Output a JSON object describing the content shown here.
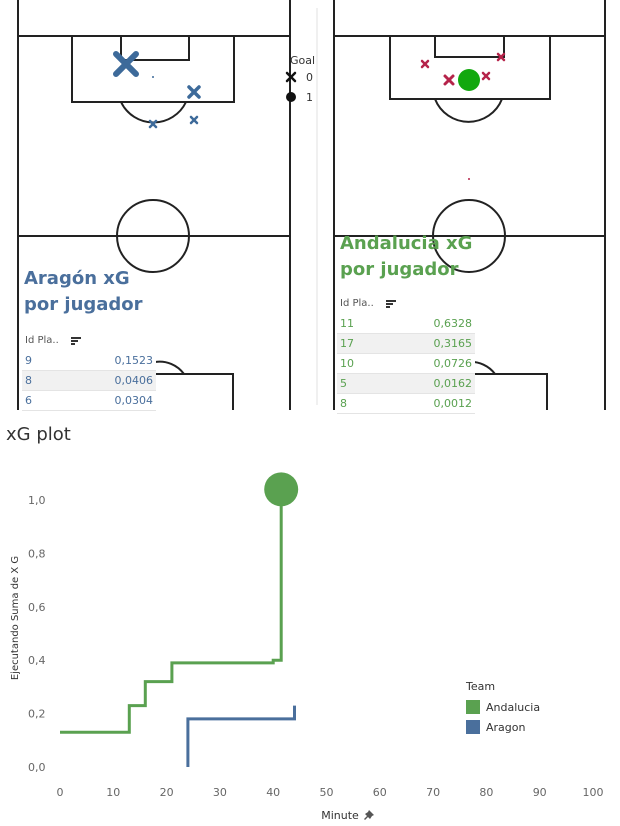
{
  "colors": {
    "aragon": "#4a6f9c",
    "andalucia": "#5aa150",
    "andalucia_goal": "#12a80e",
    "andalucia_miss": "#b5234a"
  },
  "left_panel": {
    "title_line1": "Aragón xG",
    "title_line2": "por jugador",
    "table_header": "Id Pla..",
    "rows": [
      {
        "id": "9",
        "xg": "0,1523"
      },
      {
        "id": "8",
        "xg": "0,0406"
      },
      {
        "id": "6",
        "xg": "0,0304"
      }
    ]
  },
  "right_panel": {
    "title_line1": "Andalucia xG",
    "title_line2": "por jugador",
    "table_header": "Id Pla..",
    "rows": [
      {
        "id": "11",
        "xg": "0,6328"
      },
      {
        "id": "17",
        "xg": "0,3165"
      },
      {
        "id": "10",
        "xg": "0,0726"
      },
      {
        "id": "5",
        "xg": "0,0162"
      },
      {
        "id": "8",
        "xg": "0,0012"
      }
    ]
  },
  "goal_legend": {
    "title": "Goal",
    "items": [
      {
        "label": "0",
        "shape": "cross"
      },
      {
        "label": "1",
        "shape": "circle"
      }
    ]
  },
  "plot_title": "xG plot",
  "team_legend": {
    "title": "Team",
    "items": [
      {
        "label": "Andalucia",
        "color": "#5aa150"
      },
      {
        "label": "Aragon",
        "color": "#4a6f9c"
      }
    ]
  },
  "chart_data": {
    "type": "line",
    "title": "xG plot",
    "xlabel": "Minute",
    "ylabel": "Ejecutando Suma de X G",
    "xlim": [
      0,
      100
    ],
    "ylim": [
      0,
      1.1
    ],
    "x_ticks": [
      "0",
      "10",
      "20",
      "30",
      "40",
      "50",
      "60",
      "70",
      "80",
      "90",
      "100"
    ],
    "y_ticks": [
      "0,0",
      "0,2",
      "0,4",
      "0,6",
      "0,8",
      "1,0"
    ],
    "series": [
      {
        "name": "Andalucia",
        "step": true,
        "points": [
          [
            0,
            0.13
          ],
          [
            13,
            0.13
          ],
          [
            13,
            0.23
          ],
          [
            16,
            0.23
          ],
          [
            16,
            0.32
          ],
          [
            21,
            0.32
          ],
          [
            21,
            0.39
          ],
          [
            40,
            0.39
          ],
          [
            40,
            0.4
          ],
          [
            41.5,
            0.4
          ],
          [
            41.5,
            1.04
          ]
        ],
        "goal_marker": {
          "x": 41.5,
          "y": 1.04
        }
      },
      {
        "name": "Aragon",
        "step": true,
        "points": [
          [
            24,
            0.0
          ],
          [
            24,
            0.18
          ],
          [
            44,
            0.18
          ],
          [
            44,
            0.23
          ]
        ]
      }
    ]
  }
}
